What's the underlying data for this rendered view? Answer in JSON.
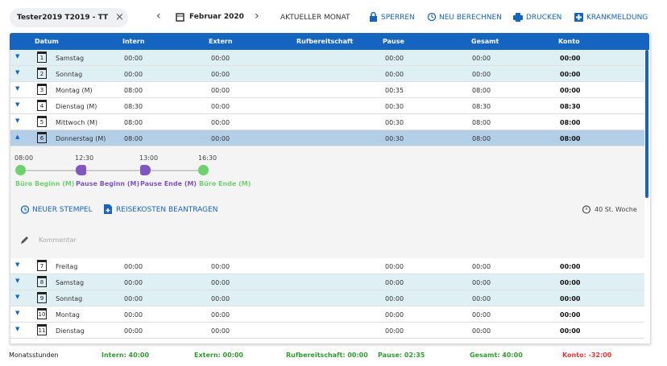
{
  "toolbar": {
    "user": "Tester2019 T2019 - TT",
    "month": "Februar 2020",
    "current_month": "AKTUELLER MONAT",
    "lock": "SPERREN",
    "recalc": "NEU BERECHNEN",
    "print": "DRUCKEN",
    "sick": "KRANKMELDUNG"
  },
  "table": {
    "columns": [
      "Datum",
      "Intern",
      "Extern",
      "Rufbereitschaft",
      "Pause",
      "Gesamt",
      "Konto"
    ],
    "rows": [
      [
        "1",
        "Samstag",
        "00:00",
        "00:00",
        "00:00",
        "00:00",
        "00:00"
      ],
      [
        "2",
        "Sonntag",
        "00:00",
        "00:00",
        "00:00",
        "00:00",
        "00:00"
      ],
      [
        "3",
        "Montag (M)",
        "08:00",
        "00:00",
        "00:35",
        "08:00",
        "00:00"
      ],
      [
        "4",
        "Dienstag (M)",
        "08:30",
        "00:00",
        "00:30",
        "08:30",
        "08:30"
      ],
      [
        "5",
        "Mittwoch (M)",
        "08:00",
        "00:00",
        "00:30",
        "08:00",
        "08:00"
      ],
      [
        "6",
        "Donnerstag (M)",
        "08:00",
        "00:00",
        "00:30",
        "08:00",
        "08:00"
      ],
      [
        "7",
        "Freitag",
        "00:00",
        "00:00",
        "00:00",
        "00:00",
        "00:00"
      ],
      [
        "8",
        "Samstag",
        "00:00",
        "00:00",
        "00:00",
        "00:00",
        "00:00"
      ],
      [
        "9",
        "Sonntag",
        "00:00",
        "00:00",
        "00:00",
        "00:00",
        "00:00"
      ],
      [
        "10",
        "Montag",
        "00:00",
        "00:00",
        "00:00",
        "00:00",
        "00:00"
      ],
      [
        "11",
        "Dienstag",
        "00:00",
        "00:00",
        "00:00",
        "00:00",
        "00:00"
      ]
    ]
  },
  "detail": {
    "stamps": [
      {
        "time": "08:00",
        "label": "Büro Beginn (M)"
      },
      {
        "time": "12:30",
        "label": "Pause Beginn (M)"
      },
      {
        "time": "13:00",
        "label": "Pause Ende (M)"
      },
      {
        "time": "16:30",
        "label": "Büro Ende (M)"
      }
    ],
    "new_stamp": "NEUER STEMPEL",
    "travel": "REISEKOSTEN BEANTRAGEN",
    "week": "40 St. Woche",
    "comment": "Kommentar"
  },
  "summary": {
    "label": "Monatsstunden",
    "intern": "Intern: 40:00",
    "extern": "Extern: 00:00",
    "ruf": "Rufbereitschaft: 00:00",
    "pause": "Pause: 02:35",
    "gesamt": "Gesamt: 40:00",
    "konto": "Konto: -32:00"
  }
}
